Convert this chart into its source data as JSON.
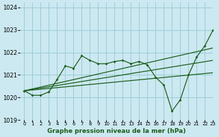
{
  "title": "Graphe pression niveau de la mer (hPa)",
  "xlim": [
    -0.5,
    23
  ],
  "ylim": [
    1019,
    1024.2
  ],
  "yticks": [
    1019,
    1020,
    1021,
    1022,
    1023,
    1024
  ],
  "xtick_labels": [
    "0",
    "1",
    "2",
    "3",
    "4",
    "5",
    "6",
    "7",
    "8",
    "9",
    "10",
    "11",
    "12",
    "13",
    "14",
    "15",
    "16",
    "17",
    "18",
    "19",
    "20",
    "21",
    "22",
    "23"
  ],
  "background_color": "#cce8f0",
  "grid_color": "#99ccd8",
  "line_color": "#1a5c1a",
  "series": [
    {
      "x": [
        0,
        1,
        2,
        3,
        4,
        5,
        6,
        7,
        8,
        9,
        10,
        11,
        12,
        13,
        14,
        15,
        16,
        17,
        18,
        19,
        20,
        21,
        22,
        23
      ],
      "y": [
        1020.3,
        1020.1,
        1020.1,
        1020.25,
        1020.8,
        1021.4,
        1021.3,
        1021.85,
        1021.65,
        1021.5,
        1021.5,
        1021.6,
        1021.65,
        1021.5,
        1021.6,
        1021.45,
        1020.9,
        1020.55,
        1019.4,
        1019.9,
        1021.0,
        1021.8,
        1022.3,
        1023.0
      ],
      "has_markers": true
    },
    {
      "x": [
        0,
        23
      ],
      "y": [
        1020.3,
        1022.2
      ],
      "has_markers": false
    },
    {
      "x": [
        0,
        23
      ],
      "y": [
        1020.3,
        1021.65
      ],
      "has_markers": false
    },
    {
      "x": [
        0,
        23
      ],
      "y": [
        1020.3,
        1021.1
      ],
      "has_markers": false
    }
  ]
}
